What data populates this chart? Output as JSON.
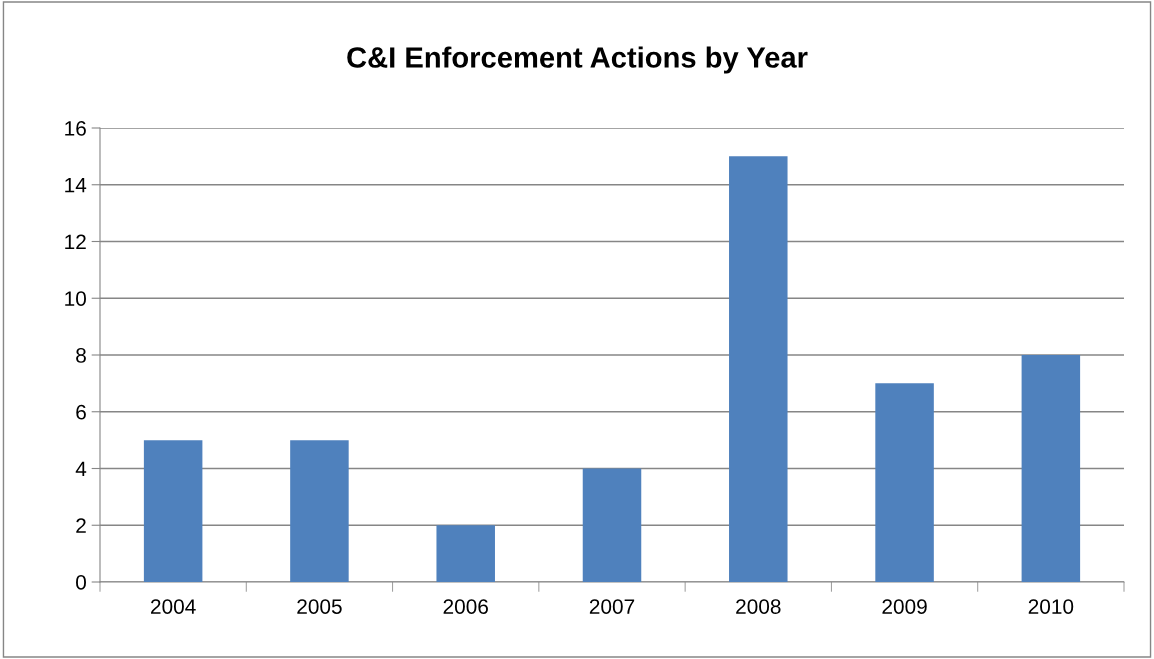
{
  "chart_data": {
    "type": "bar",
    "title": "C&I Enforcement Actions by Year",
    "categories": [
      "2004",
      "2005",
      "2006",
      "2007",
      "2008",
      "2009",
      "2010"
    ],
    "values": [
      5,
      5,
      2,
      4,
      15,
      7,
      8
    ],
    "color": "#4f81bd",
    "ylim": [
      0,
      16
    ],
    "yticks": [
      0,
      2,
      4,
      6,
      8,
      10,
      12,
      14,
      16
    ],
    "grid": "y",
    "legend": false
  }
}
